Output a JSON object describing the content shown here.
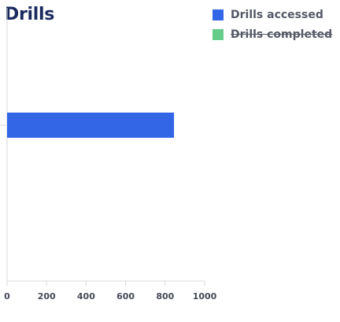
{
  "chart_data": {
    "type": "bar",
    "orientation": "horizontal",
    "title": "Drills",
    "categories": [
      ""
    ],
    "series": [
      {
        "name": "Drills accessed",
        "values": [
          845
        ],
        "color": "#3366e6",
        "visible": true
      },
      {
        "name": "Drills completed",
        "values": [
          0
        ],
        "color": "#66cc8a",
        "visible": false
      }
    ],
    "xlim": [
      0,
      1000
    ],
    "x_ticks": [
      0,
      200,
      400,
      600,
      800,
      1000
    ],
    "grid": false,
    "legend_position": "top-right"
  }
}
